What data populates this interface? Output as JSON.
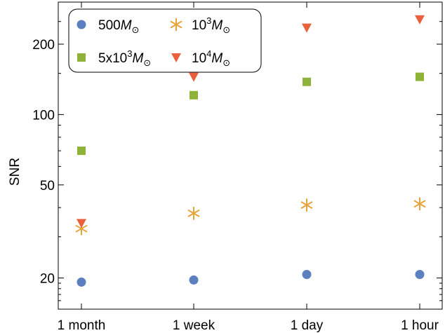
{
  "chart_data": {
    "type": "scatter",
    "title": "",
    "xlabel": "",
    "ylabel": "SNR",
    "y_scale": "log",
    "ylim": [
      15,
      290
    ],
    "categories": [
      "1 month",
      "1 week",
      "1 day",
      "1 hour"
    ],
    "y_ticks": [
      {
        "value": 20,
        "label": "20"
      },
      {
        "value": 50,
        "label": "50"
      },
      {
        "value": 100,
        "label": "100"
      },
      {
        "value": 200,
        "label": "200"
      }
    ],
    "series": [
      {
        "name": "500M⊙",
        "mass_main": "500",
        "mass_sup": "",
        "prefix": "",
        "marker": "circle",
        "color": "#5b7fbf",
        "values": [
          19.2,
          19.6,
          20.7,
          20.7
        ]
      },
      {
        "name": "10³M⊙",
        "mass_main": "10",
        "mass_sup": "3",
        "prefix": "",
        "marker": "star",
        "color": "#e8a23a",
        "values": [
          32.5,
          37.8,
          41.0,
          41.5
        ]
      },
      {
        "name": "5x10³M⊙",
        "mass_main": "5x10",
        "mass_sup": "3",
        "prefix": "",
        "marker": "square",
        "color": "#8fb339",
        "values": [
          70,
          121,
          138,
          145
        ]
      },
      {
        "name": "10⁴M⊙",
        "mass_main": "10",
        "mass_sup": "4",
        "prefix": "",
        "marker": "triangle-down",
        "color": "#e8603c",
        "values": [
          34.3,
          145,
          235,
          255
        ]
      }
    ],
    "legend": {
      "placement": "top-left",
      "columns": 2
    }
  }
}
